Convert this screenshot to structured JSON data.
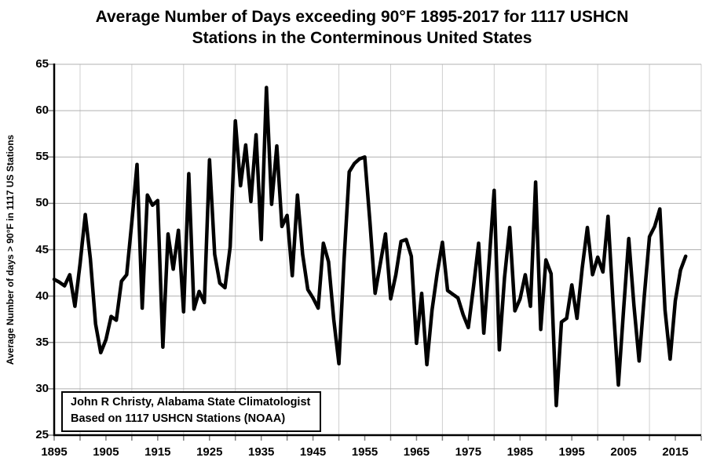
{
  "title": {
    "line1": "Average Number of Days exceeding 90°F 1895-2017 for 1117 USHCN",
    "line2": "Stations in the Conterminous United States"
  },
  "y_axis": {
    "label": "Average Number of days > 90°F in 1117 US Stations",
    "min": 25,
    "max": 65,
    "tick_interval": 5,
    "tick_labels": [
      "25",
      "30",
      "35",
      "40",
      "45",
      "50",
      "55",
      "60",
      "65"
    ]
  },
  "x_axis": {
    "domain_start": 1895,
    "domain_end": 2020,
    "label_interval": 10,
    "minor_tick_interval": 5,
    "tick_labels": [
      "1895",
      "1905",
      "1915",
      "1925",
      "1935",
      "1945",
      "1955",
      "1965",
      "1975",
      "1985",
      "1995",
      "2005",
      "2015"
    ]
  },
  "annotation": {
    "line1": "John R Christy, Alabama State Climatologist",
    "line2": "Based on 1117 USHCN Stations (NOAA)"
  },
  "colors": {
    "line": "#000000",
    "axis": "#000000",
    "gridline_h": "#b0b0b0",
    "gridline_v": "#d0d0d0",
    "tick": "#808080",
    "text": "#000000",
    "background": "#ffffff"
  },
  "chart_data": {
    "type": "line",
    "title": "Average Number of Days exceeding 90°F 1895-2017 for 1117 USHCN Stations in the Conterminous United States",
    "xlabel": "",
    "ylabel": "Average Number of days > 90°F in 1117 US Stations",
    "ylim": [
      25,
      65
    ],
    "grid": "horizontal-gray, faint-vertical-decades",
    "legend": "none",
    "line_width": 4.5,
    "x": [
      1895,
      1896,
      1897,
      1898,
      1899,
      1900,
      1901,
      1902,
      1903,
      1904,
      1905,
      1906,
      1907,
      1908,
      1909,
      1910,
      1911,
      1912,
      1913,
      1914,
      1915,
      1916,
      1917,
      1918,
      1919,
      1920,
      1921,
      1922,
      1923,
      1924,
      1925,
      1926,
      1927,
      1928,
      1929,
      1930,
      1931,
      1932,
      1933,
      1934,
      1935,
      1936,
      1937,
      1938,
      1939,
      1940,
      1941,
      1942,
      1943,
      1944,
      1945,
      1946,
      1947,
      1948,
      1949,
      1950,
      1951,
      1952,
      1953,
      1954,
      1955,
      1956,
      1957,
      1958,
      1959,
      1960,
      1961,
      1962,
      1963,
      1964,
      1965,
      1966,
      1967,
      1968,
      1969,
      1970,
      1971,
      1972,
      1973,
      1974,
      1975,
      1976,
      1977,
      1978,
      1979,
      1980,
      1981,
      1982,
      1983,
      1984,
      1985,
      1986,
      1987,
      1988,
      1989,
      1990,
      1991,
      1992,
      1993,
      1994,
      1995,
      1996,
      1997,
      1998,
      1999,
      2000,
      2001,
      2002,
      2003,
      2004,
      2005,
      2006,
      2007,
      2008,
      2009,
      2010,
      2011,
      2012,
      2013,
      2014,
      2015,
      2016,
      2017
    ],
    "values": [
      41.8,
      41.5,
      41.1,
      42.3,
      38.9,
      43.5,
      48.8,
      44.0,
      37.0,
      33.9,
      35.3,
      37.8,
      37.4,
      41.6,
      42.3,
      48.0,
      54.2,
      38.7,
      50.9,
      49.8,
      50.3,
      34.5,
      46.7,
      42.9,
      47.1,
      38.3,
      53.2,
      38.6,
      40.5,
      39.3,
      54.7,
      44.5,
      41.4,
      40.9,
      45.3,
      58.9,
      51.9,
      56.3,
      50.2,
      57.4,
      46.1,
      62.5,
      49.9,
      56.2,
      47.5,
      48.7,
      42.2,
      50.9,
      44.5,
      40.7,
      39.8,
      38.7,
      45.7,
      43.7,
      37.5,
      32.7,
      44.0,
      53.4,
      54.3,
      54.8,
      55.0,
      48.0,
      40.3,
      43.5,
      46.7,
      39.7,
      42.3,
      45.9,
      46.1,
      44.3,
      34.9,
      40.3,
      32.6,
      38.5,
      42.5,
      45.8,
      40.6,
      40.2,
      39.8,
      38.0,
      36.6,
      41.0,
      45.7,
      36.0,
      43.5,
      51.4,
      34.2,
      42.0,
      47.4,
      38.4,
      39.7,
      42.3,
      38.9,
      52.3,
      36.4,
      43.9,
      42.4,
      28.2,
      37.2,
      37.6,
      41.2,
      37.6,
      43.0,
      47.4,
      42.3,
      44.2,
      42.6,
      48.6,
      39.0,
      30.4,
      38.5,
      46.2,
      39.0,
      33.0,
      40.0,
      46.4,
      47.5,
      49.4,
      38.5,
      33.2,
      39.5,
      42.8,
      44.3
    ]
  }
}
